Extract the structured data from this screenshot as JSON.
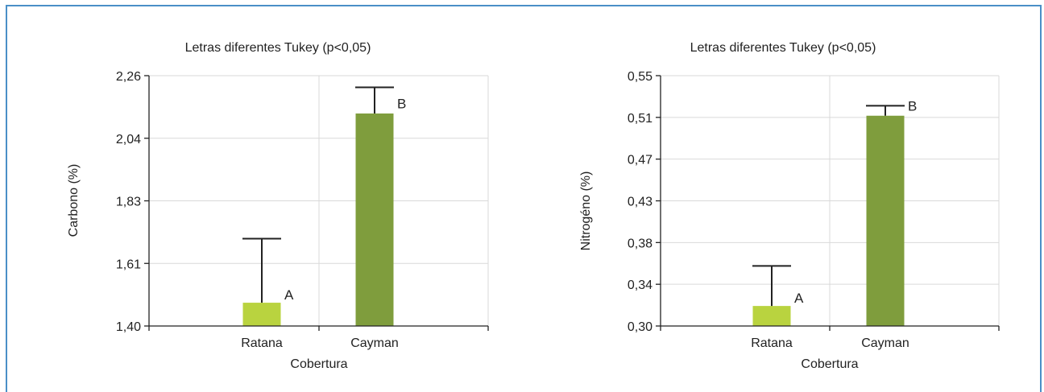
{
  "chart_data": [
    {
      "type": "bar",
      "title": "Letras diferentes Tukey (p<0,05)",
      "xlabel": "Cobertura",
      "ylabel": "Carbono (%)",
      "ylim": [
        1.4,
        2.26
      ],
      "yticks": [
        "2,26",
        "2,04",
        "1,83",
        "1,61",
        "1,40"
      ],
      "ytick_values": [
        2.26,
        2.04,
        1.83,
        1.61,
        1.4
      ],
      "categories": [
        "Ratana",
        "Cayman"
      ],
      "values": [
        1.48,
        2.13
      ],
      "error_upper": [
        1.7,
        2.22
      ],
      "letters": [
        "A",
        "B"
      ],
      "colors": [
        "#b9d33f",
        "#7f9d3d"
      ],
      "grid": true
    },
    {
      "type": "bar",
      "title": "Letras diferentes Tukey (p<0,05)",
      "xlabel": "Cobertura",
      "ylabel": "Nitrogéno (%)",
      "ylim": [
        0.3,
        0.55
      ],
      "yticks": [
        "0,55",
        "0,51",
        "0,47",
        "0,43",
        "0,38",
        "0,34",
        "0,30"
      ],
      "ytick_values": [
        0.55,
        0.51,
        0.47,
        0.43,
        0.38,
        0.34,
        0.3
      ],
      "categories": [
        "Ratana",
        "Cayman"
      ],
      "values": [
        0.32,
        0.51
      ],
      "error_upper": [
        0.36,
        0.52
      ],
      "letters": [
        "A",
        "B"
      ],
      "colors": [
        "#b9d33f",
        "#7f9d3d"
      ],
      "grid": true
    }
  ]
}
